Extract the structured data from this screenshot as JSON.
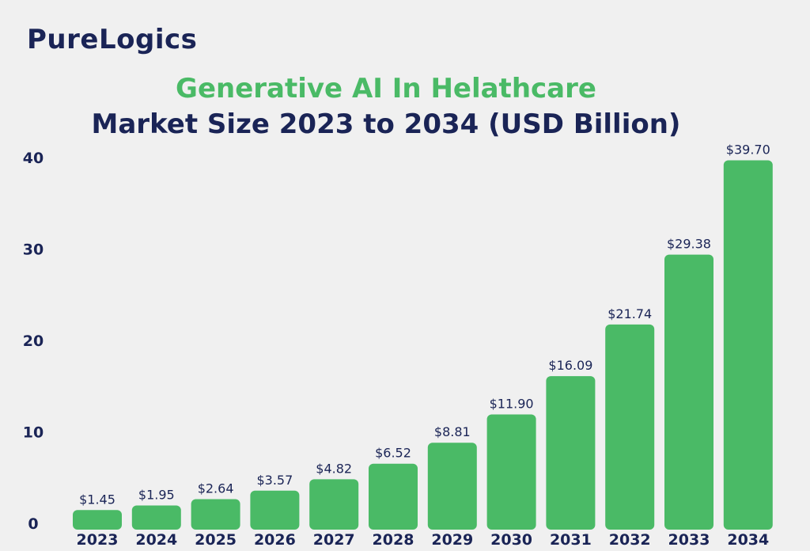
{
  "brand": {
    "logo_text": "PureLogics"
  },
  "colors": {
    "bar": "#4aba66",
    "navy": "#1a2456",
    "background": "#f0f0f0"
  },
  "chart_data": {
    "type": "bar",
    "title": "Generative AI In Helathcare",
    "subtitle": "Market Size 2023 to 2034 (USD Billion)",
    "xlabel": "",
    "ylabel": "",
    "categories": [
      "2023",
      "2024",
      "2025",
      "2026",
      "2027",
      "2028",
      "2029",
      "2030",
      "2031",
      "2032",
      "2033",
      "2034"
    ],
    "values": [
      1.45,
      1.95,
      2.64,
      3.57,
      4.82,
      6.52,
      8.81,
      11.9,
      16.09,
      21.74,
      29.38,
      39.7
    ],
    "data_labels": [
      "$1.45",
      "$1.95",
      "$2.64",
      "$3.57",
      "$4.82",
      "$6.52",
      "$8.81",
      "$11.90",
      "$16.09",
      "$21.74",
      "$29.38",
      "$39.70"
    ],
    "ylim": [
      0,
      40
    ],
    "yticks": [
      0,
      10,
      20,
      30,
      40
    ],
    "grid": false,
    "legend": "none"
  }
}
